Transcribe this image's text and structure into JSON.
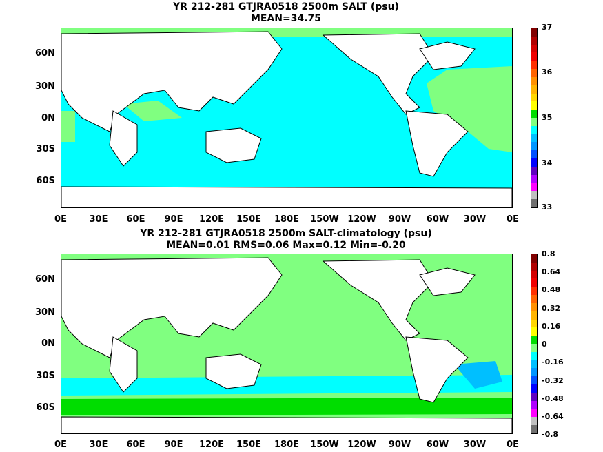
{
  "panels": [
    {
      "title_line1": "YR 212-281 GTJRA0518 2500m SALT (psu)",
      "title_line2": "MEAN=34.75",
      "colorbar": {
        "labels": [
          "37",
          "36",
          "35",
          "34",
          "33"
        ],
        "colors": [
          "#800000",
          "#b00000",
          "#d40000",
          "#f00000",
          "#ff3000",
          "#ff6400",
          "#ff9000",
          "#ffb400",
          "#ffd700",
          "#ffff00",
          "#00dd00",
          "#80ff80",
          "#00ffff",
          "#00bfff",
          "#0096ff",
          "#0050ff",
          "#0000ff",
          "#6000c0",
          "#b000ff",
          "#ff00ff",
          "#c0c0c0",
          "#707070"
        ]
      }
    },
    {
      "title_line1": "YR 212-281 GTJRA0518 2500m SALT-climatology (psu)",
      "title_line2": "MEAN=0.01   RMS=0.06   Max=0.12   Min=-0.20",
      "colorbar": {
        "labels": [
          "0.8",
          "0.64",
          "0.48",
          "0.32",
          "0.16",
          "0",
          "-0.16",
          "-0.32",
          "-0.48",
          "-0.64",
          "-0.8"
        ],
        "colors": [
          "#800000",
          "#b00000",
          "#d40000",
          "#f00000",
          "#ff3000",
          "#ff6400",
          "#ff9000",
          "#ffb400",
          "#ffd700",
          "#ffff00",
          "#00dd00",
          "#80ff80",
          "#00ffff",
          "#00bfff",
          "#0096ff",
          "#0050ff",
          "#0000ff",
          "#6000c0",
          "#b000ff",
          "#ff00ff",
          "#c0c0c0",
          "#707070"
        ]
      }
    }
  ],
  "lat_labels": [
    "60N",
    "30N",
    "0N",
    "30S",
    "60S"
  ],
  "lon_labels": [
    "0E",
    "30E",
    "60E",
    "90E",
    "120E",
    "150E",
    "180E",
    "150W",
    "120W",
    "90W",
    "60W",
    "30W",
    "0E"
  ],
  "colors": {
    "ocean_top": "#00ffff",
    "atlantic_top": "#80ff80",
    "ocean_bottom": "#80ff80",
    "land": "#ffffff",
    "coast": "#000000"
  }
}
